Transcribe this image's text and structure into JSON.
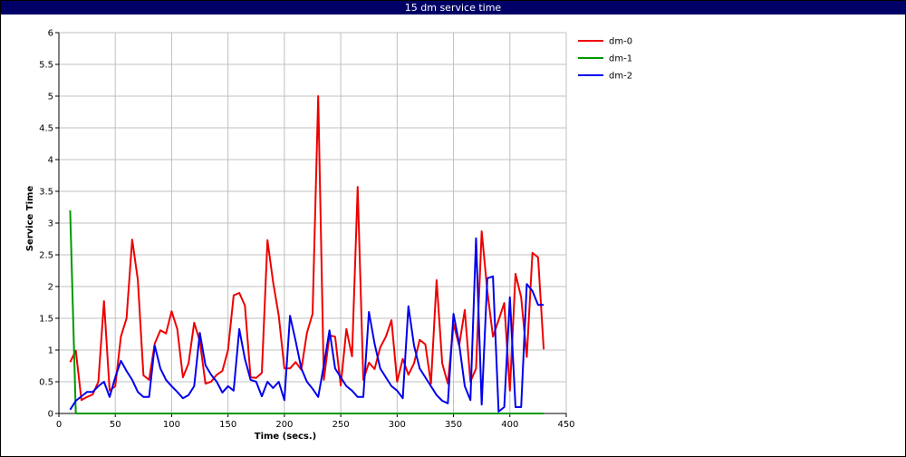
{
  "chart_data": {
    "type": "line",
    "title": "15 dm service time",
    "x_label": "Time (secs.)",
    "y_label": "Service Time",
    "x": [
      10,
      15,
      20,
      25,
      30,
      35,
      40,
      45,
      50,
      55,
      60,
      65,
      70,
      75,
      80,
      85,
      90,
      95,
      100,
      105,
      110,
      115,
      120,
      125,
      130,
      135,
      140,
      145,
      150,
      155,
      160,
      165,
      170,
      175,
      180,
      185,
      190,
      195,
      200,
      205,
      210,
      215,
      220,
      225,
      230,
      235,
      240,
      245,
      250,
      255,
      260,
      265,
      270,
      275,
      280,
      285,
      290,
      295,
      300,
      305,
      310,
      315,
      320,
      325,
      330,
      335,
      340,
      345,
      350,
      355,
      360,
      365,
      370,
      375,
      380,
      385,
      390,
      395,
      400,
      405,
      410,
      415,
      420,
      425,
      430
    ],
    "series": [
      {
        "name": "dm-0",
        "color": "#ee0000",
        "values": [
          0.81,
          0.99,
          0.21,
          0.26,
          0.3,
          0.5,
          1.77,
          0.36,
          0.43,
          1.21,
          1.5,
          2.74,
          2.11,
          0.6,
          0.53,
          1.1,
          1.31,
          1.26,
          1.61,
          1.33,
          0.57,
          0.79,
          1.43,
          1.14,
          0.47,
          0.5,
          0.61,
          0.67,
          1.0,
          1.86,
          1.9,
          1.7,
          0.57,
          0.56,
          0.64,
          2.73,
          2.07,
          1.54,
          0.71,
          0.71,
          0.81,
          0.69,
          1.27,
          1.57,
          5.0,
          0.53,
          1.23,
          1.21,
          0.44,
          1.33,
          0.9,
          3.57,
          0.53,
          0.8,
          0.7,
          1.04,
          1.21,
          1.47,
          0.5,
          0.86,
          0.61,
          0.79,
          1.16,
          1.09,
          0.47,
          2.1,
          0.79,
          0.47,
          1.41,
          1.07,
          1.63,
          0.5,
          0.71,
          2.87,
          1.93,
          1.21,
          1.47,
          1.74,
          0.36,
          2.2,
          1.83,
          0.89,
          2.53,
          2.46,
          1.01
        ]
      },
      {
        "name": "dm-1",
        "color": "#009900",
        "values": [
          3.2,
          0,
          0,
          0,
          0,
          0,
          0,
          0,
          0,
          0,
          0,
          0,
          0,
          0,
          0,
          0,
          0,
          0,
          0,
          0,
          0,
          0,
          0,
          0,
          0,
          0,
          0,
          0,
          0,
          0,
          0,
          0,
          0,
          0,
          0,
          0,
          0,
          0,
          0,
          0,
          0,
          0,
          0,
          0,
          0,
          0,
          0,
          0,
          0,
          0,
          0,
          0,
          0,
          0,
          0,
          0,
          0,
          0,
          0,
          0,
          0,
          0,
          0,
          0,
          0,
          0,
          0,
          0,
          0,
          0,
          0,
          0,
          0,
          0,
          0,
          0,
          0,
          0,
          0,
          0,
          0,
          0,
          0,
          0,
          0
        ]
      },
      {
        "name": "dm-2",
        "color": "#0000ee",
        "values": [
          0.06,
          0.2,
          0.27,
          0.34,
          0.34,
          0.43,
          0.5,
          0.26,
          0.57,
          0.83,
          0.67,
          0.53,
          0.34,
          0.26,
          0.26,
          1.07,
          0.71,
          0.53,
          0.43,
          0.34,
          0.24,
          0.29,
          0.43,
          1.27,
          0.76,
          0.61,
          0.5,
          0.33,
          0.43,
          0.36,
          1.33,
          0.86,
          0.53,
          0.5,
          0.27,
          0.5,
          0.4,
          0.5,
          0.21,
          1.54,
          1.14,
          0.71,
          0.5,
          0.39,
          0.26,
          0.76,
          1.31,
          0.71,
          0.57,
          0.43,
          0.36,
          0.26,
          0.26,
          1.6,
          1.1,
          0.71,
          0.57,
          0.43,
          0.36,
          0.24,
          1.69,
          1.07,
          0.71,
          0.57,
          0.43,
          0.29,
          0.2,
          0.16,
          1.57,
          1.1,
          0.43,
          0.21,
          2.76,
          0.14,
          2.13,
          2.16,
          0.03,
          0.1,
          1.83,
          0.1,
          0.1,
          2.04,
          1.93,
          1.71,
          1.71
        ]
      }
    ],
    "xlim": [
      0,
      450
    ],
    "xticks": [
      0,
      50,
      100,
      150,
      200,
      250,
      300,
      350,
      400,
      450
    ],
    "ylim": [
      0,
      6
    ],
    "yticks": [
      0,
      0.5,
      1,
      1.5,
      2,
      2.5,
      3,
      3.5,
      4,
      4.5,
      5,
      5.5,
      6
    ],
    "grid": true,
    "legend": "top-right"
  }
}
